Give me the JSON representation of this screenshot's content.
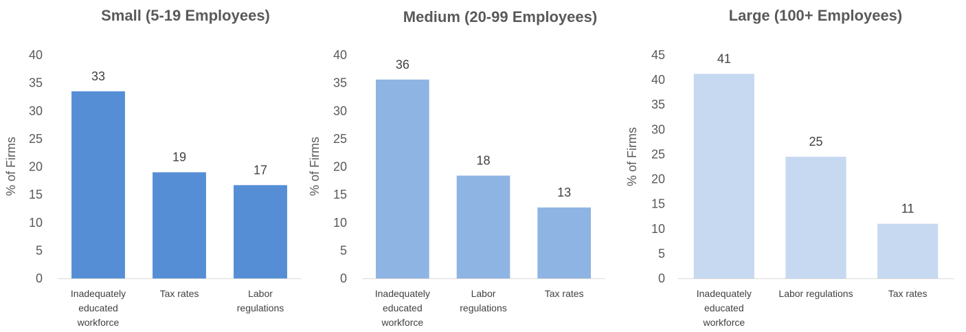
{
  "chart_data": [
    {
      "type": "bar",
      "title": "Small (5-19 Employees)",
      "ylabel": "% of Firms",
      "categories": [
        [
          "Inadequately",
          "educated",
          "workforce"
        ],
        [
          "Tax rates"
        ],
        [
          "Labor",
          "regulations"
        ]
      ],
      "values": [
        33,
        19,
        17
      ],
      "bar_values": [
        33.5,
        19,
        16.7
      ],
      "ylim": [
        0,
        40
      ],
      "yticks": [
        0,
        5,
        10,
        15,
        20,
        25,
        30,
        35,
        40
      ],
      "color": "#558ED5",
      "grid": false,
      "legend": "none"
    },
    {
      "type": "bar",
      "title": "Medium (20-99 Employees)",
      "ylabel": "% of Firms",
      "categories": [
        [
          "Inadequately",
          "educated",
          "workforce"
        ],
        [
          "Labor",
          "regulations"
        ],
        [
          "Tax rates"
        ]
      ],
      "values": [
        36,
        18,
        13
      ],
      "bar_values": [
        35.6,
        18.4,
        12.7
      ],
      "ylim": [
        0,
        40
      ],
      "yticks": [
        0,
        5,
        10,
        15,
        20,
        25,
        30,
        35,
        40
      ],
      "color": "#8EB4E3",
      "grid": false,
      "legend": "none"
    },
    {
      "type": "bar",
      "title": "Large (100+ Employees)",
      "ylabel": "% of Firms",
      "categories": [
        [
          "Inadequately",
          "educated",
          "workforce"
        ],
        [
          "Labor regulations"
        ],
        [
          "Tax rates"
        ]
      ],
      "values": [
        41,
        25,
        11
      ],
      "bar_values": [
        41.2,
        24.5,
        11
      ],
      "ylim": [
        0,
        45
      ],
      "yticks": [
        0,
        5,
        10,
        15,
        20,
        25,
        30,
        35,
        40,
        45
      ],
      "color": "#C6D9F1",
      "grid": false,
      "legend": "none"
    }
  ]
}
